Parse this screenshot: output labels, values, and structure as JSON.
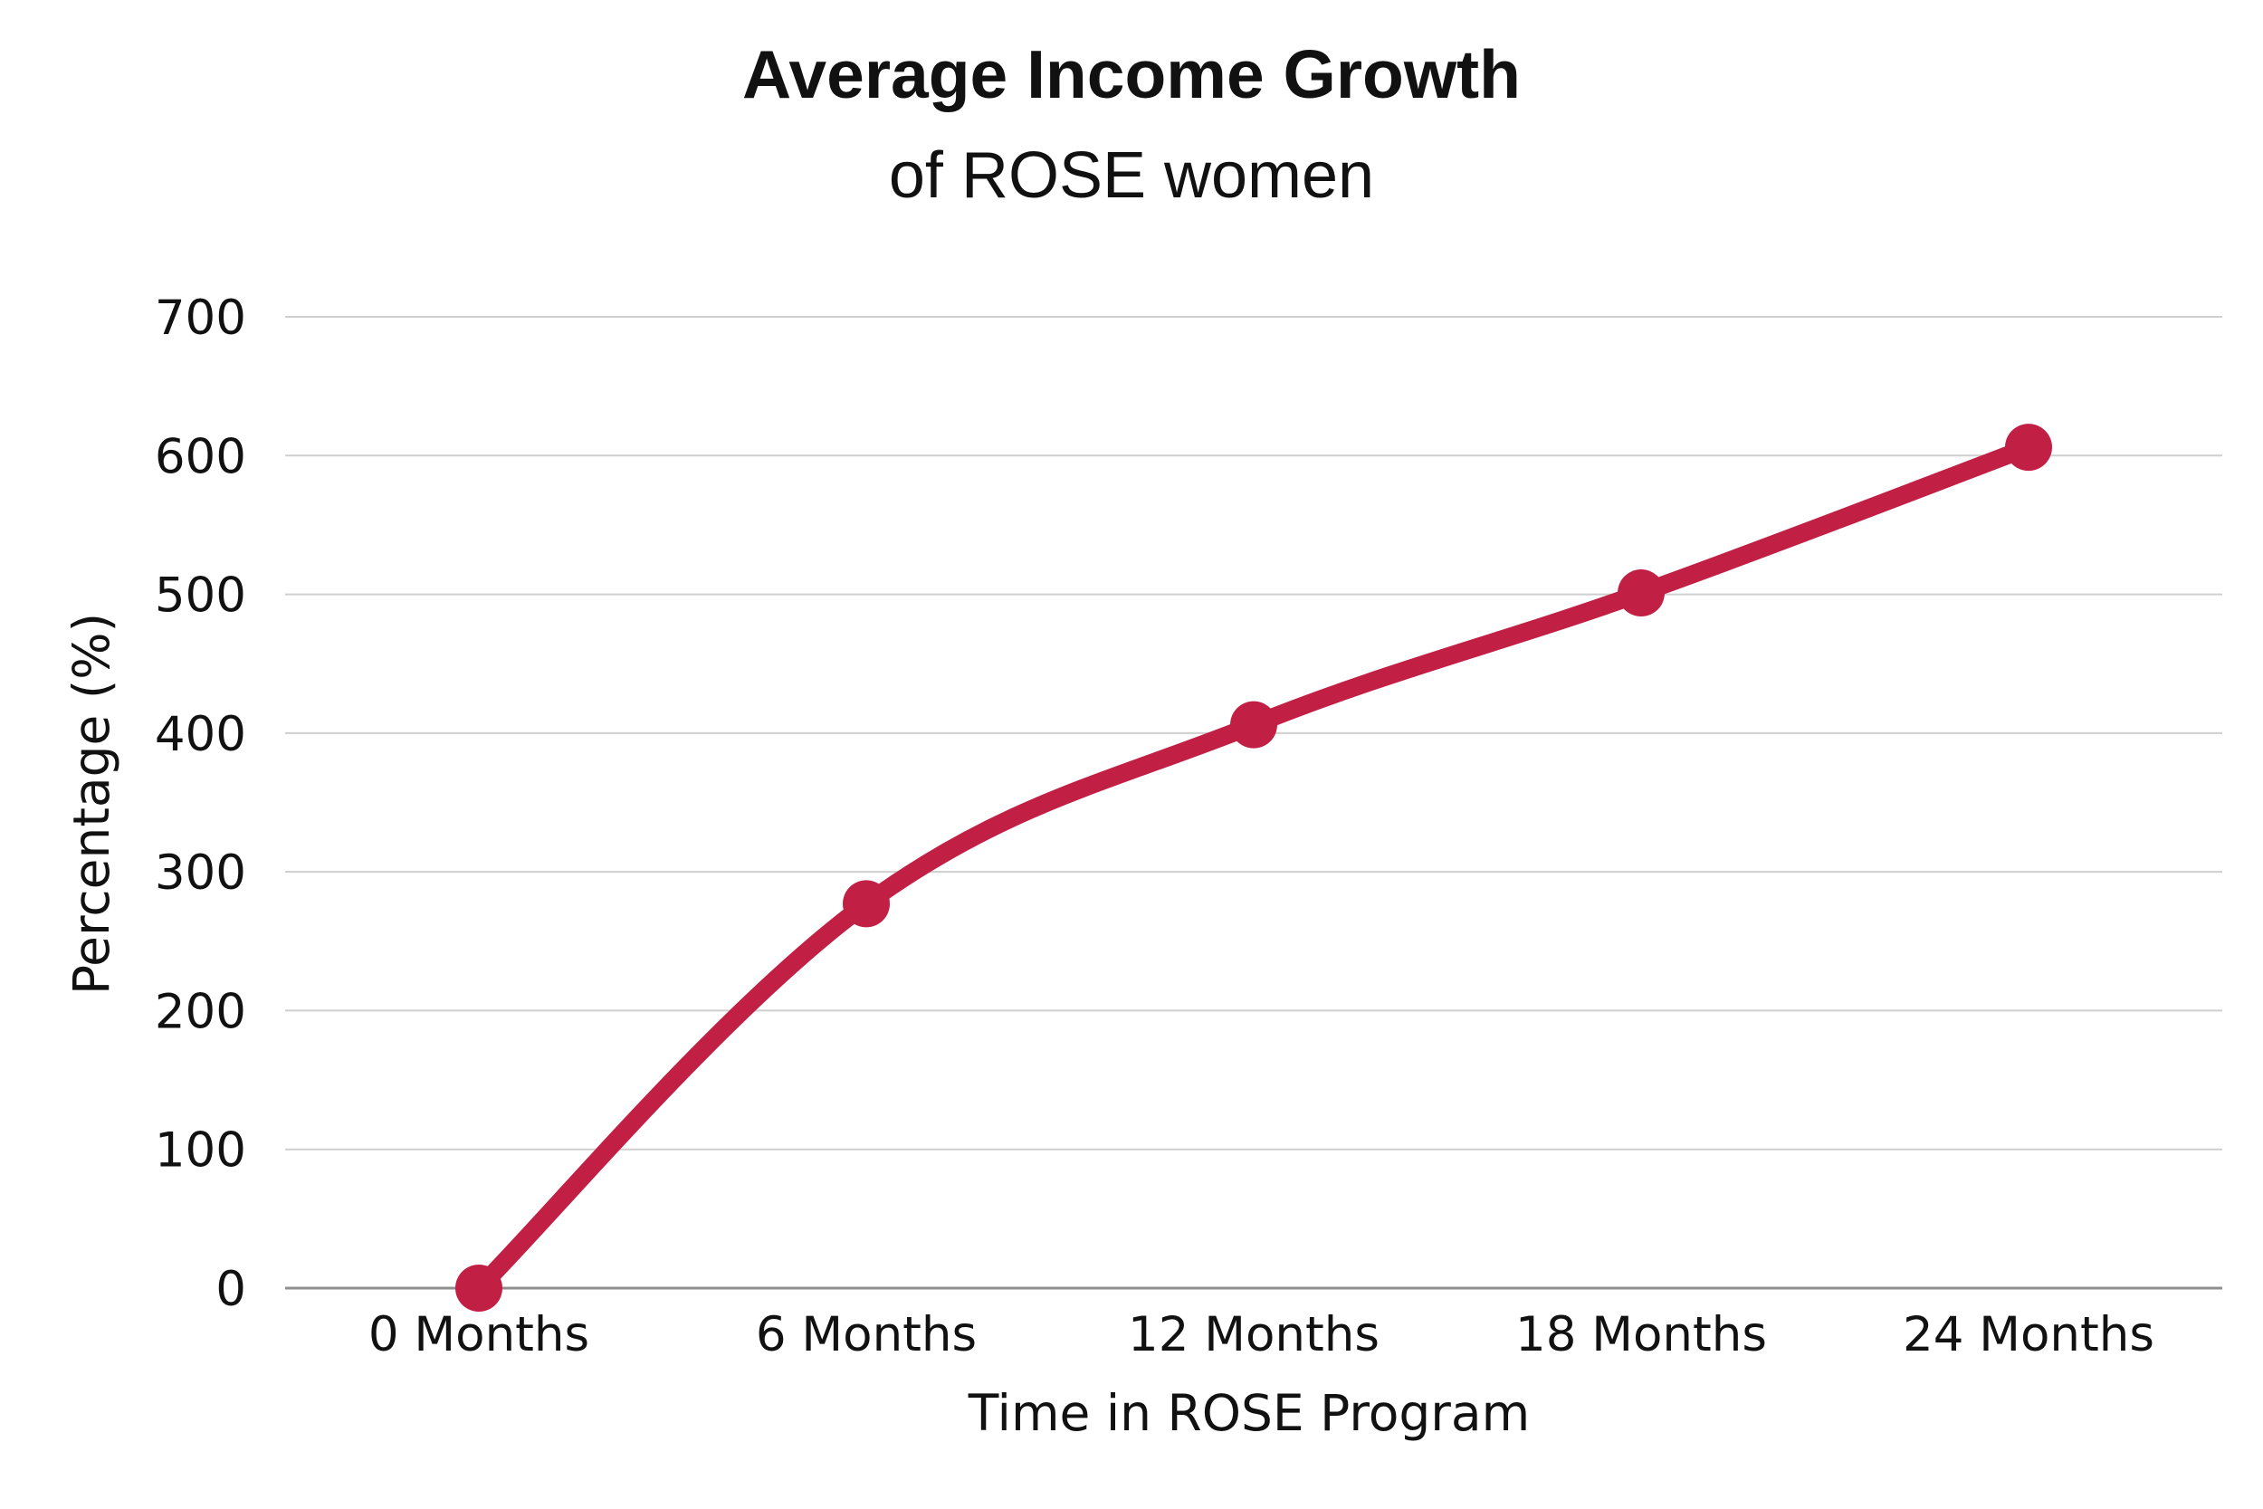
{
  "chart_data": {
    "type": "line",
    "title": "Average Income Growth",
    "subtitle": "of ROSE women",
    "xlabel": "Time in ROSE Program",
    "ylabel": "Percentage (%)",
    "categories": [
      "0 Months",
      "6 Months",
      "12 Months",
      "18 Months",
      "24 Months"
    ],
    "series": [
      {
        "values": [
          0,
          277,
          406,
          501,
          606
        ]
      }
    ],
    "ylim": [
      0,
      700
    ],
    "yticks": [
      0,
      100,
      200,
      300,
      400,
      500,
      600,
      700
    ],
    "grid": true,
    "legend": "none",
    "line_style": "smooth",
    "colors": {
      "line": "#C21F45",
      "grid": "#CFCFCF",
      "baseline": "#8F8F8F",
      "text": "#111111"
    }
  }
}
